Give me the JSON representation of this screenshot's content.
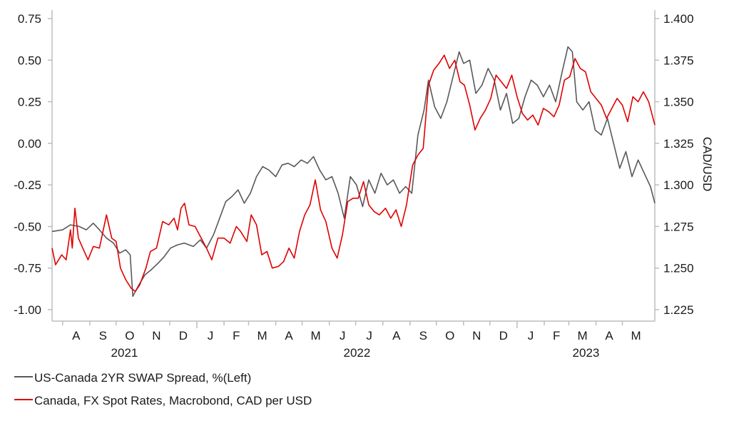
{
  "colors": {
    "series1": "#595959",
    "series2": "#e00000",
    "axis": "#bdbdbd"
  },
  "chart_data": {
    "type": "line",
    "x_range": [
      "2021-07-20",
      "2023-06-07"
    ],
    "month_labels": [
      {
        "label": "A",
        "month": "2021-08"
      },
      {
        "label": "S",
        "month": "2021-09"
      },
      {
        "label": "O",
        "month": "2021-10"
      },
      {
        "label": "N",
        "month": "2021-11"
      },
      {
        "label": "D",
        "month": "2021-12"
      },
      {
        "label": "J",
        "month": "2022-01"
      },
      {
        "label": "F",
        "month": "2022-02"
      },
      {
        "label": "M",
        "month": "2022-03"
      },
      {
        "label": "A",
        "month": "2022-04"
      },
      {
        "label": "M",
        "month": "2022-05"
      },
      {
        "label": "J",
        "month": "2022-06"
      },
      {
        "label": "J",
        "month": "2022-07"
      },
      {
        "label": "A",
        "month": "2022-08"
      },
      {
        "label": "S",
        "month": "2022-09"
      },
      {
        "label": "O",
        "month": "2022-10"
      },
      {
        "label": "N",
        "month": "2022-11"
      },
      {
        "label": "D",
        "month": "2022-12"
      },
      {
        "label": "J",
        "month": "2023-01"
      },
      {
        "label": "F",
        "month": "2023-02"
      },
      {
        "label": "M",
        "month": "2023-03"
      },
      {
        "label": "A",
        "month": "2023-04"
      },
      {
        "label": "M",
        "month": "2023-05"
      }
    ],
    "year_labels": [
      "2021",
      "2022",
      "2023"
    ],
    "left_axis": {
      "label": "",
      "ylim": [
        -1.0,
        0.75
      ],
      "ticks": [
        "-1.00",
        "-0.75",
        "-0.50",
        "-0.25",
        "0.00",
        "0.25",
        "0.50",
        "0.75"
      ]
    },
    "right_axis": {
      "label": "CAD/USD",
      "ylim": [
        1.225,
        1.4
      ],
      "ticks": [
        "1.225",
        "1.250",
        "1.275",
        "1.300",
        "1.325",
        "1.350",
        "1.375",
        "1.400"
      ]
    },
    "grid": false,
    "legend_position": "bottom-left",
    "series": [
      {
        "name": "US-Canada 2YR SWAP Spread, %(Left)",
        "axis": "left",
        "points": [
          [
            "2021-07-20",
            -0.53
          ],
          [
            "2021-08-01",
            -0.52
          ],
          [
            "2021-08-10",
            -0.49
          ],
          [
            "2021-08-20",
            -0.5
          ],
          [
            "2021-08-28",
            -0.52
          ],
          [
            "2021-09-05",
            -0.48
          ],
          [
            "2021-09-12",
            -0.52
          ],
          [
            "2021-09-20",
            -0.57
          ],
          [
            "2021-09-28",
            -0.6
          ],
          [
            "2021-10-05",
            -0.66
          ],
          [
            "2021-10-12",
            -0.64
          ],
          [
            "2021-10-17",
            -0.67
          ],
          [
            "2021-10-20",
            -0.92
          ],
          [
            "2021-10-27",
            -0.85
          ],
          [
            "2021-11-03",
            -0.79
          ],
          [
            "2021-11-10",
            -0.76
          ],
          [
            "2021-11-18",
            -0.72
          ],
          [
            "2021-11-25",
            -0.68
          ],
          [
            "2021-12-02",
            -0.63
          ],
          [
            "2021-12-10",
            -0.61
          ],
          [
            "2021-12-18",
            -0.6
          ],
          [
            "2021-12-28",
            -0.62
          ],
          [
            "2022-01-05",
            -0.58
          ],
          [
            "2022-01-12",
            -0.63
          ],
          [
            "2022-01-20",
            -0.55
          ],
          [
            "2022-01-27",
            -0.45
          ],
          [
            "2022-02-03",
            -0.35
          ],
          [
            "2022-02-10",
            -0.32
          ],
          [
            "2022-02-17",
            -0.28
          ],
          [
            "2022-02-24",
            -0.36
          ],
          [
            "2022-03-03",
            -0.3
          ],
          [
            "2022-03-10",
            -0.2
          ],
          [
            "2022-03-17",
            -0.14
          ],
          [
            "2022-03-24",
            -0.16
          ],
          [
            "2022-04-01",
            -0.2
          ],
          [
            "2022-04-08",
            -0.13
          ],
          [
            "2022-04-15",
            -0.12
          ],
          [
            "2022-04-22",
            -0.14
          ],
          [
            "2022-04-30",
            -0.1
          ],
          [
            "2022-05-07",
            -0.12
          ],
          [
            "2022-05-14",
            -0.08
          ],
          [
            "2022-05-21",
            -0.16
          ],
          [
            "2022-05-28",
            -0.22
          ],
          [
            "2022-06-04",
            -0.2
          ],
          [
            "2022-06-11",
            -0.3
          ],
          [
            "2022-06-18",
            -0.45
          ],
          [
            "2022-06-25",
            -0.2
          ],
          [
            "2022-07-02",
            -0.25
          ],
          [
            "2022-07-09",
            -0.38
          ],
          [
            "2022-07-16",
            -0.22
          ],
          [
            "2022-07-23",
            -0.3
          ],
          [
            "2022-07-30",
            -0.18
          ],
          [
            "2022-08-06",
            -0.25
          ],
          [
            "2022-08-13",
            -0.22
          ],
          [
            "2022-08-20",
            -0.3
          ],
          [
            "2022-08-27",
            -0.26
          ],
          [
            "2022-09-03",
            -0.3
          ],
          [
            "2022-09-10",
            0.05
          ],
          [
            "2022-09-17",
            0.2
          ],
          [
            "2022-09-22",
            0.38
          ],
          [
            "2022-09-29",
            0.22
          ],
          [
            "2022-10-06",
            0.15
          ],
          [
            "2022-10-13",
            0.25
          ],
          [
            "2022-10-20",
            0.4
          ],
          [
            "2022-10-27",
            0.55
          ],
          [
            "2022-11-01",
            0.48
          ],
          [
            "2022-11-08",
            0.5
          ],
          [
            "2022-11-15",
            0.3
          ],
          [
            "2022-11-22",
            0.35
          ],
          [
            "2022-11-29",
            0.45
          ],
          [
            "2022-12-06",
            0.38
          ],
          [
            "2022-12-13",
            0.2
          ],
          [
            "2022-12-20",
            0.3
          ],
          [
            "2022-12-27",
            0.12
          ],
          [
            "2023-01-03",
            0.15
          ],
          [
            "2023-01-10",
            0.28
          ],
          [
            "2023-01-17",
            0.38
          ],
          [
            "2023-01-24",
            0.35
          ],
          [
            "2023-01-31",
            0.28
          ],
          [
            "2023-02-07",
            0.35
          ],
          [
            "2023-02-14",
            0.25
          ],
          [
            "2023-02-21",
            0.42
          ],
          [
            "2023-02-28",
            0.58
          ],
          [
            "2023-03-05",
            0.55
          ],
          [
            "2023-03-10",
            0.25
          ],
          [
            "2023-03-17",
            0.2
          ],
          [
            "2023-03-24",
            0.25
          ],
          [
            "2023-03-31",
            0.08
          ],
          [
            "2023-04-07",
            0.05
          ],
          [
            "2023-04-14",
            0.15
          ],
          [
            "2023-04-21",
            0.0
          ],
          [
            "2023-04-28",
            -0.15
          ],
          [
            "2023-05-05",
            -0.05
          ],
          [
            "2023-05-12",
            -0.2
          ],
          [
            "2023-05-19",
            -0.1
          ],
          [
            "2023-05-26",
            -0.18
          ],
          [
            "2023-06-02",
            -0.26
          ],
          [
            "2023-06-07",
            -0.36
          ]
        ]
      },
      {
        "name": "Canada, FX Spot Rates, Macrobond, CAD per USD",
        "axis": "right",
        "points": [
          [
            "2021-07-20",
            1.262
          ],
          [
            "2021-07-24",
            1.252
          ],
          [
            "2021-07-31",
            1.258
          ],
          [
            "2021-08-05",
            1.255
          ],
          [
            "2021-08-10",
            1.273
          ],
          [
            "2021-08-12",
            1.262
          ],
          [
            "2021-08-15",
            1.286
          ],
          [
            "2021-08-19",
            1.268
          ],
          [
            "2021-08-24",
            1.262
          ],
          [
            "2021-08-30",
            1.255
          ],
          [
            "2021-09-05",
            1.263
          ],
          [
            "2021-09-12",
            1.262
          ],
          [
            "2021-09-20",
            1.282
          ],
          [
            "2021-09-26",
            1.268
          ],
          [
            "2021-10-01",
            1.266
          ],
          [
            "2021-10-06",
            1.25
          ],
          [
            "2021-10-12",
            1.243
          ],
          [
            "2021-10-18",
            1.238
          ],
          [
            "2021-10-23",
            1.236
          ],
          [
            "2021-10-28",
            1.24
          ],
          [
            "2021-11-04",
            1.25
          ],
          [
            "2021-11-09",
            1.26
          ],
          [
            "2021-11-16",
            1.262
          ],
          [
            "2021-11-23",
            1.278
          ],
          [
            "2021-11-30",
            1.276
          ],
          [
            "2021-12-06",
            1.28
          ],
          [
            "2021-12-10",
            1.273
          ],
          [
            "2021-12-14",
            1.286
          ],
          [
            "2021-12-18",
            1.289
          ],
          [
            "2021-12-23",
            1.276
          ],
          [
            "2021-12-30",
            1.275
          ],
          [
            "2022-01-06",
            1.268
          ],
          [
            "2022-01-12",
            1.262
          ],
          [
            "2022-01-18",
            1.255
          ],
          [
            "2022-01-25",
            1.268
          ],
          [
            "2022-02-01",
            1.268
          ],
          [
            "2022-02-08",
            1.265
          ],
          [
            "2022-02-15",
            1.275
          ],
          [
            "2022-02-20",
            1.272
          ],
          [
            "2022-02-27",
            1.266
          ],
          [
            "2022-03-04",
            1.282
          ],
          [
            "2022-03-10",
            1.276
          ],
          [
            "2022-03-16",
            1.258
          ],
          [
            "2022-03-22",
            1.26
          ],
          [
            "2022-03-28",
            1.25
          ],
          [
            "2022-04-04",
            1.251
          ],
          [
            "2022-04-10",
            1.254
          ],
          [
            "2022-04-16",
            1.262
          ],
          [
            "2022-04-22",
            1.256
          ],
          [
            "2022-04-28",
            1.272
          ],
          [
            "2022-05-04",
            1.282
          ],
          [
            "2022-05-10",
            1.288
          ],
          [
            "2022-05-16",
            1.303
          ],
          [
            "2022-05-22",
            1.285
          ],
          [
            "2022-05-28",
            1.278
          ],
          [
            "2022-06-04",
            1.262
          ],
          [
            "2022-06-10",
            1.256
          ],
          [
            "2022-06-16",
            1.27
          ],
          [
            "2022-06-22",
            1.29
          ],
          [
            "2022-06-28",
            1.292
          ],
          [
            "2022-07-04",
            1.292
          ],
          [
            "2022-07-10",
            1.302
          ],
          [
            "2022-07-16",
            1.288
          ],
          [
            "2022-07-22",
            1.284
          ],
          [
            "2022-07-28",
            1.282
          ],
          [
            "2022-08-04",
            1.286
          ],
          [
            "2022-08-10",
            1.28
          ],
          [
            "2022-08-16",
            1.285
          ],
          [
            "2022-08-22",
            1.275
          ],
          [
            "2022-08-28",
            1.288
          ],
          [
            "2022-09-04",
            1.312
          ],
          [
            "2022-09-10",
            1.318
          ],
          [
            "2022-09-16",
            1.322
          ],
          [
            "2022-09-22",
            1.36
          ],
          [
            "2022-09-28",
            1.369
          ],
          [
            "2022-10-04",
            1.373
          ],
          [
            "2022-10-10",
            1.378
          ],
          [
            "2022-10-16",
            1.37
          ],
          [
            "2022-10-22",
            1.375
          ],
          [
            "2022-10-28",
            1.362
          ],
          [
            "2022-11-02",
            1.36
          ],
          [
            "2022-11-08",
            1.348
          ],
          [
            "2022-11-14",
            1.333
          ],
          [
            "2022-11-20",
            1.34
          ],
          [
            "2022-11-26",
            1.345
          ],
          [
            "2022-12-02",
            1.352
          ],
          [
            "2022-12-08",
            1.366
          ],
          [
            "2022-12-14",
            1.362
          ],
          [
            "2022-12-20",
            1.358
          ],
          [
            "2022-12-26",
            1.366
          ],
          [
            "2023-01-01",
            1.353
          ],
          [
            "2023-01-07",
            1.343
          ],
          [
            "2023-01-13",
            1.339
          ],
          [
            "2023-01-19",
            1.342
          ],
          [
            "2023-01-25",
            1.336
          ],
          [
            "2023-01-31",
            1.346
          ],
          [
            "2023-02-06",
            1.344
          ],
          [
            "2023-02-12",
            1.341
          ],
          [
            "2023-02-18",
            1.348
          ],
          [
            "2023-02-24",
            1.363
          ],
          [
            "2023-03-02",
            1.365
          ],
          [
            "2023-03-08",
            1.376
          ],
          [
            "2023-03-14",
            1.37
          ],
          [
            "2023-03-20",
            1.368
          ],
          [
            "2023-03-26",
            1.356
          ],
          [
            "2023-04-01",
            1.352
          ],
          [
            "2023-04-07",
            1.348
          ],
          [
            "2023-04-13",
            1.34
          ],
          [
            "2023-04-19",
            1.346
          ],
          [
            "2023-04-25",
            1.352
          ],
          [
            "2023-05-01",
            1.348
          ],
          [
            "2023-05-07",
            1.338
          ],
          [
            "2023-05-13",
            1.353
          ],
          [
            "2023-05-19",
            1.35
          ],
          [
            "2023-05-25",
            1.356
          ],
          [
            "2023-05-31",
            1.35
          ],
          [
            "2023-06-04",
            1.342
          ],
          [
            "2023-06-07",
            1.336
          ]
        ]
      }
    ]
  }
}
